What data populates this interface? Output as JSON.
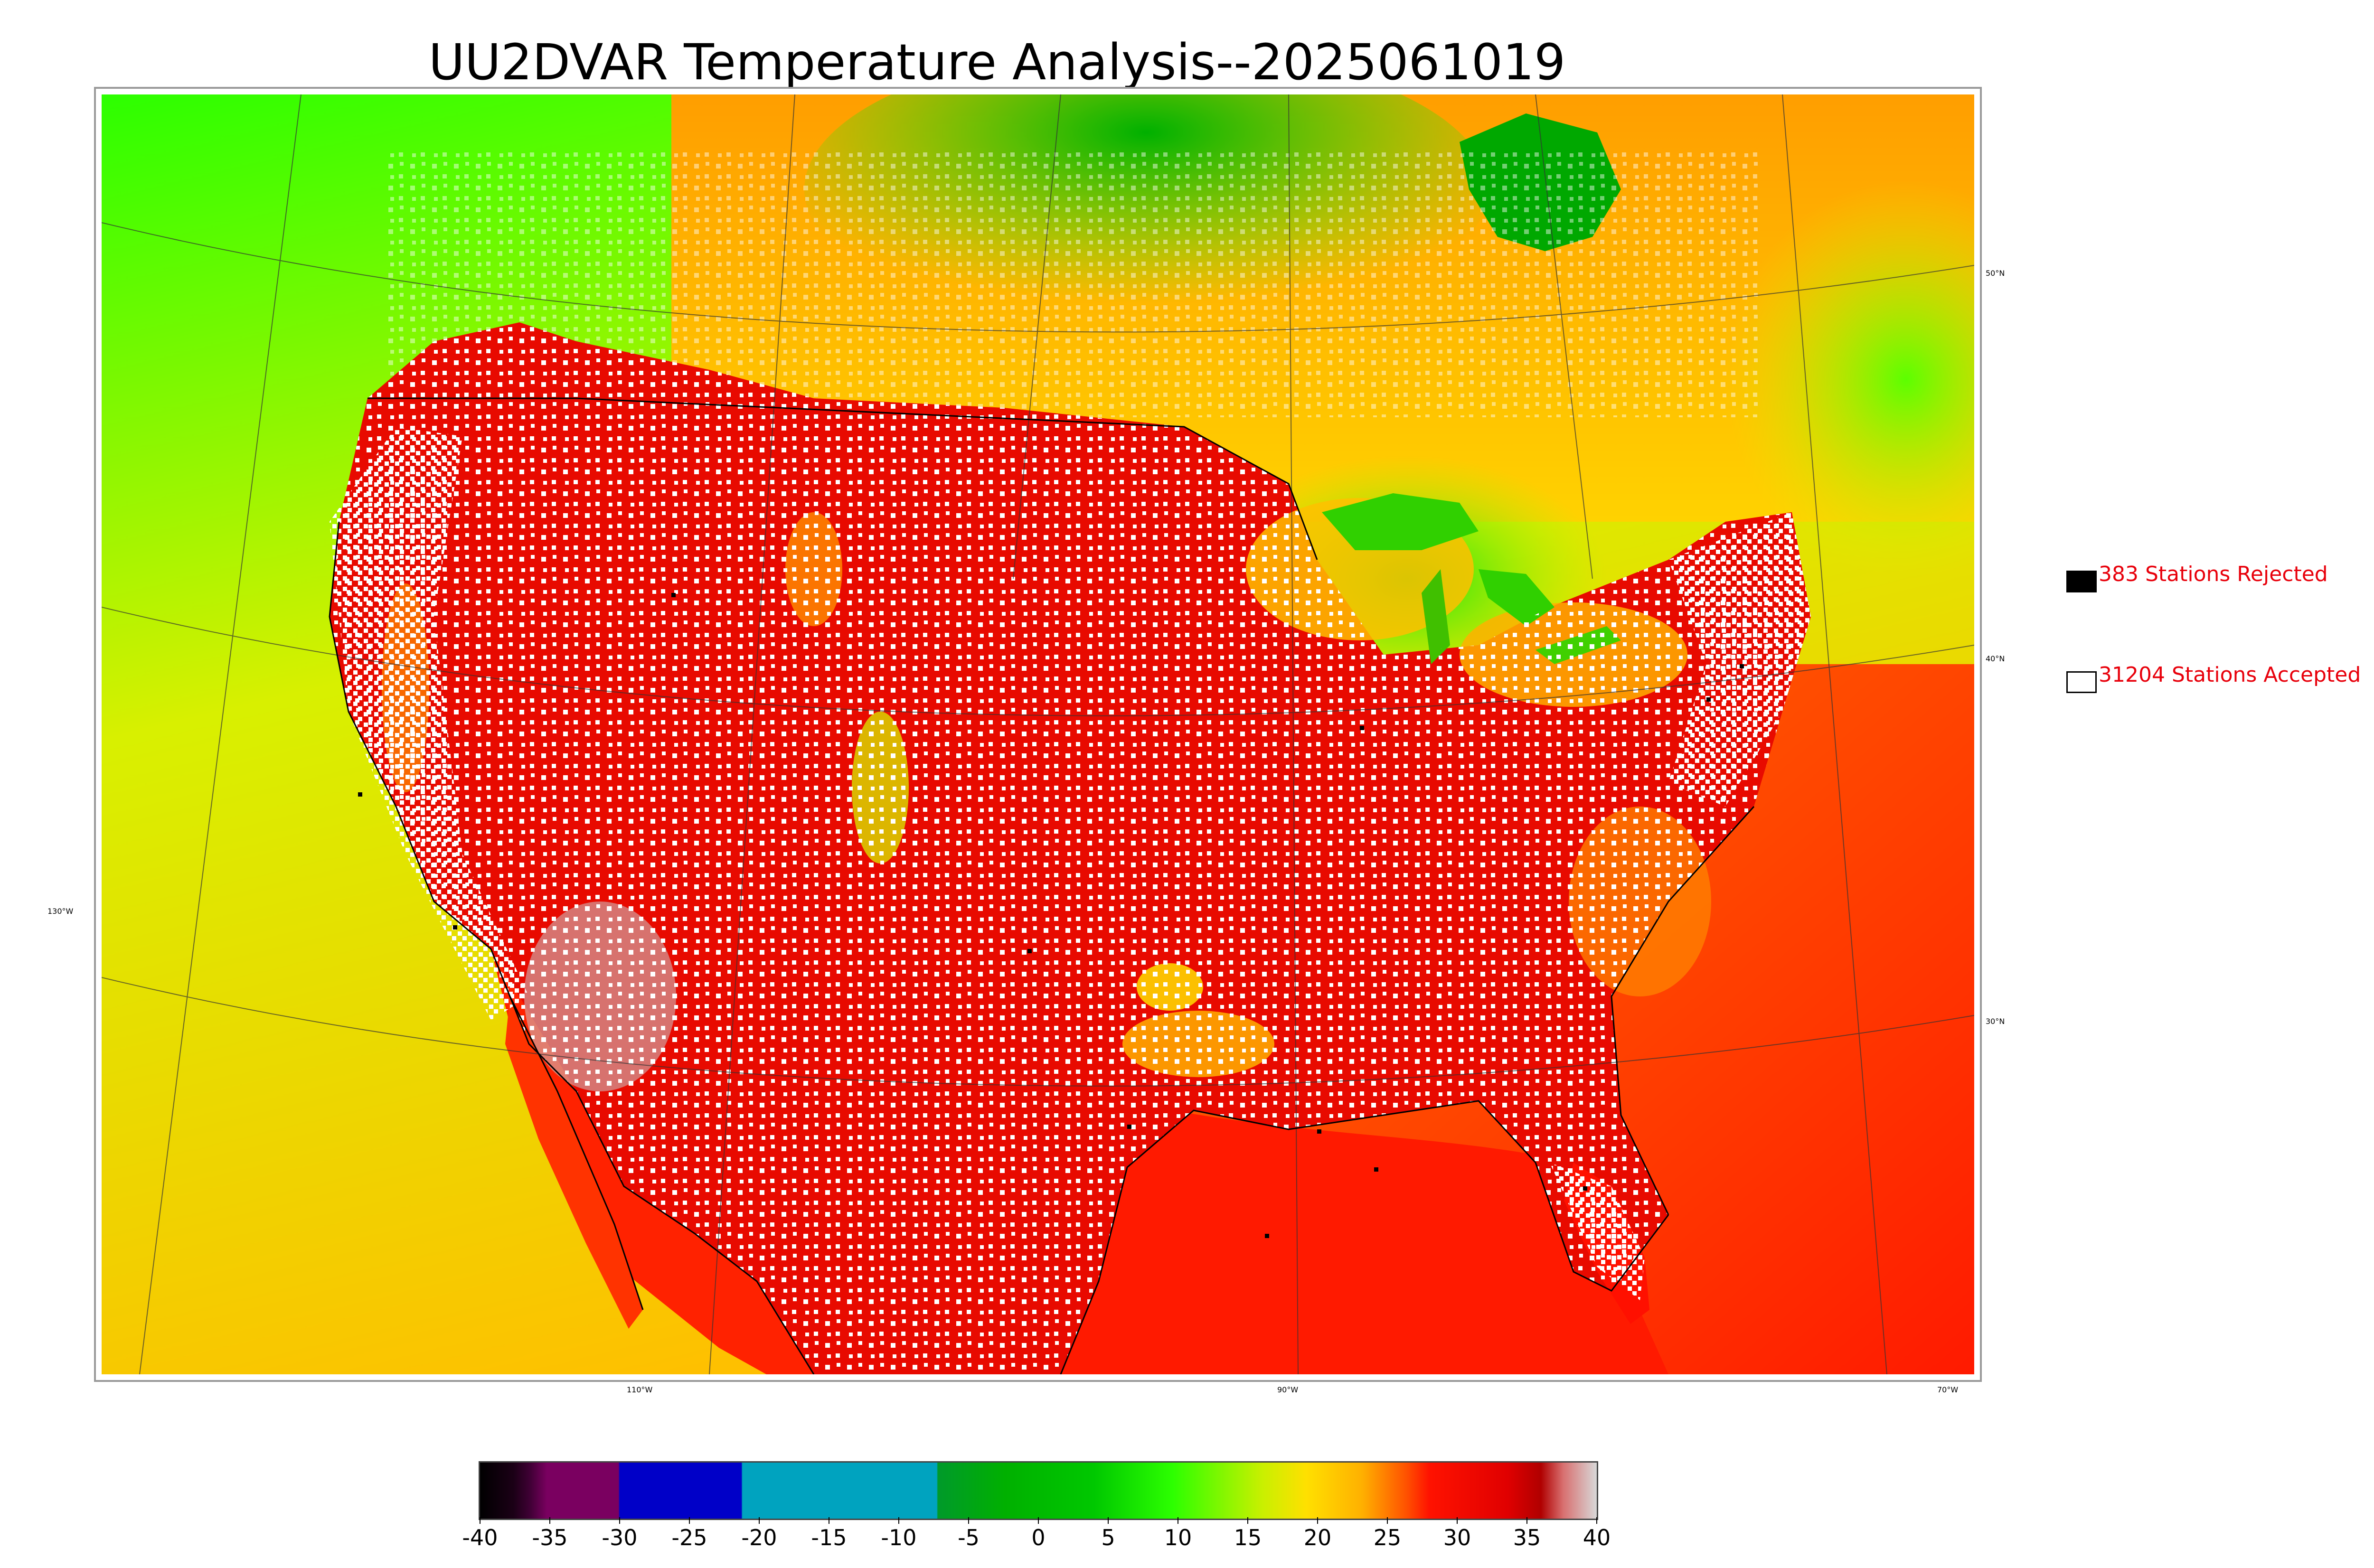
{
  "title": "UU2DVAR Temperature Analysis--2025061019",
  "map": {
    "lat_labels": [
      "50°N",
      "40°N",
      "30°N"
    ],
    "lon_labels": [
      "130°W",
      "110°W",
      "90°W",
      "70°W"
    ]
  },
  "legend": {
    "rejected": {
      "label": "383 Stations Rejected",
      "count": 383,
      "marker": "black-filled-square"
    },
    "accepted": {
      "label": "31204 Stations Accepted",
      "count": 31204,
      "marker": "white-hollow-square"
    }
  },
  "colorbar": {
    "min": -40,
    "max": 40,
    "ticks": [
      "-40",
      "-35",
      "-30",
      "-25",
      "-20",
      "-15",
      "-10",
      "-5",
      "0",
      "5",
      "10",
      "15",
      "20",
      "25",
      "30",
      "35",
      "40"
    ],
    "colors": {
      "cold_dark": "#1b0016",
      "purple": "#7a0060",
      "blue": "#0000c8",
      "teal": "#00a3bf",
      "dark_green": "#009a2a",
      "green": "#00c800",
      "bright_green": "#2cff00",
      "yellow": "#e8f000",
      "orange": "#ffb000",
      "red": "#ff1200",
      "dark_red": "#cc0000",
      "gray": "#d8d8d8"
    }
  }
}
